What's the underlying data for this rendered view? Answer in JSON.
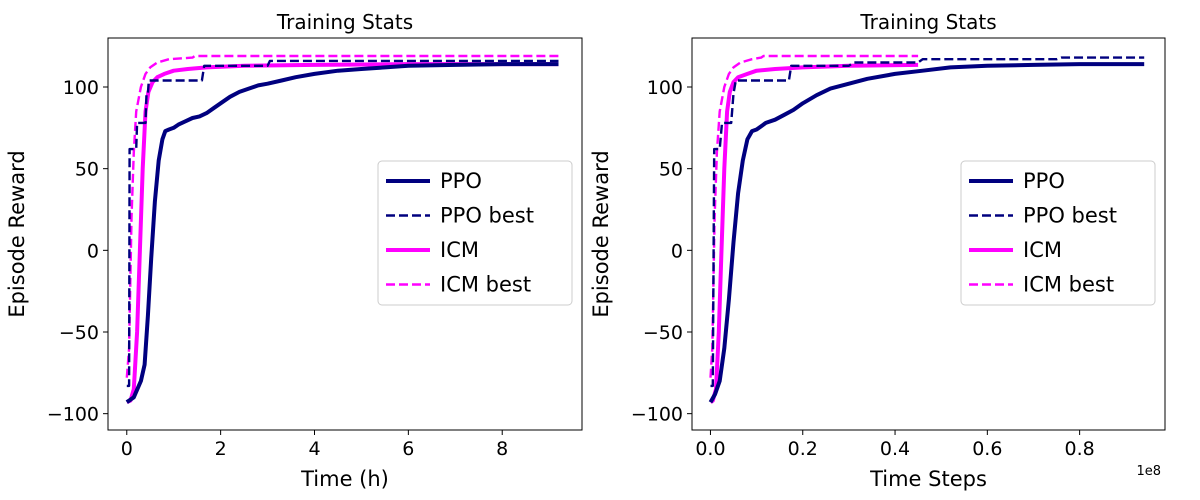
{
  "chart_data": [
    {
      "type": "line",
      "title": "Training Stats",
      "xlabel": "Time (h)",
      "ylabel": "Episode Reward",
      "xlim": [
        -0.4,
        9.7
      ],
      "ylim": [
        -110,
        130
      ],
      "xticks": [
        0,
        2,
        4,
        6,
        8
      ],
      "xtick_labels": [
        "0",
        "2",
        "4",
        "6",
        "8"
      ],
      "yticks": [
        -100,
        -50,
        0,
        50,
        100
      ],
      "ytick_labels": [
        "−100",
        "−50",
        "0",
        "50",
        "100"
      ],
      "x_offset_label": "",
      "grid": false,
      "legend_position": "center-right",
      "series": [
        {
          "name": "PPO",
          "color": "#00007f",
          "dash": "solid",
          "points": [
            [
              0,
              -93
            ],
            [
              0.15,
              -90
            ],
            [
              0.3,
              -80
            ],
            [
              0.38,
              -70
            ],
            [
              0.45,
              -40
            ],
            [
              0.52,
              -5
            ],
            [
              0.6,
              30
            ],
            [
              0.68,
              55
            ],
            [
              0.76,
              68
            ],
            [
              0.82,
              73
            ],
            [
              0.9,
              74
            ],
            [
              1.0,
              75
            ],
            [
              1.1,
              77
            ],
            [
              1.25,
              79
            ],
            [
              1.4,
              81
            ],
            [
              1.55,
              82
            ],
            [
              1.7,
              84
            ],
            [
              1.85,
              87
            ],
            [
              2.0,
              90
            ],
            [
              2.2,
              94
            ],
            [
              2.4,
              97
            ],
            [
              2.6,
              99
            ],
            [
              2.8,
              101
            ],
            [
              3.0,
              102
            ],
            [
              3.3,
              104
            ],
            [
              3.6,
              106
            ],
            [
              4.0,
              108
            ],
            [
              4.5,
              110
            ],
            [
              5.0,
              111
            ],
            [
              5.5,
              112
            ],
            [
              6.0,
              113
            ],
            [
              7.0,
              113.5
            ],
            [
              8.0,
              114
            ],
            [
              9.2,
              114
            ]
          ]
        },
        {
          "name": "PPO best",
          "color": "#00007f",
          "dash": "dashed",
          "points": [
            [
              0,
              -83
            ],
            [
              0.05,
              -83
            ],
            [
              0.06,
              62
            ],
            [
              0.2,
              62
            ],
            [
              0.22,
              78
            ],
            [
              0.4,
              78
            ],
            [
              0.42,
              96
            ],
            [
              0.45,
              96
            ],
            [
              0.47,
              104
            ],
            [
              1.6,
              104
            ],
            [
              1.65,
              113
            ],
            [
              3.0,
              113
            ],
            [
              3.05,
              116
            ],
            [
              9.2,
              116
            ]
          ]
        },
        {
          "name": "ICM",
          "color": "#ff00ff",
          "dash": "solid",
          "points": [
            [
              0,
              -93
            ],
            [
              0.08,
              -92
            ],
            [
              0.15,
              -85
            ],
            [
              0.22,
              -50
            ],
            [
              0.28,
              0
            ],
            [
              0.34,
              50
            ],
            [
              0.4,
              85
            ],
            [
              0.46,
              97
            ],
            [
              0.55,
              103
            ],
            [
              0.65,
              106
            ],
            [
              0.8,
              108
            ],
            [
              1.0,
              110
            ],
            [
              1.3,
              111
            ],
            [
              1.7,
              112
            ],
            [
              2.5,
              113
            ],
            [
              4.0,
              113.5
            ],
            [
              6.0,
              114
            ],
            [
              9.2,
              114
            ]
          ]
        },
        {
          "name": "ICM best",
          "color": "#ff00ff",
          "dash": "dashed",
          "points": [
            [
              0,
              -78
            ],
            [
              0.05,
              -60
            ],
            [
              0.1,
              20
            ],
            [
              0.15,
              60
            ],
            [
              0.2,
              85
            ],
            [
              0.3,
              100
            ],
            [
              0.4,
              108
            ],
            [
              0.5,
              112
            ],
            [
              0.65,
              115
            ],
            [
              0.9,
              117
            ],
            [
              1.4,
              118
            ],
            [
              1.45,
              119
            ],
            [
              9.2,
              119
            ]
          ]
        }
      ]
    },
    {
      "type": "line",
      "title": "Training Stats",
      "xlabel": "Time Steps",
      "ylabel": "Episode Reward",
      "xlim": [
        -0.004,
        0.0985
      ],
      "ylim": [
        -110,
        130
      ],
      "xticks": [
        0,
        0.02,
        0.04,
        0.06,
        0.08
      ],
      "xtick_labels": [
        "0.0",
        "0.2",
        "0.4",
        "0.6",
        "0.8"
      ],
      "yticks": [
        -100,
        -50,
        0,
        50,
        100
      ],
      "ytick_labels": [
        "−100",
        "−50",
        "0",
        "50",
        "100"
      ],
      "x_offset_label": "1e8",
      "grid": false,
      "legend_position": "center-right",
      "series": [
        {
          "name": "PPO",
          "color": "#00007f",
          "dash": "solid",
          "points": [
            [
              0,
              -93
            ],
            [
              0.001,
              -88
            ],
            [
              0.002,
              -80
            ],
            [
              0.003,
              -60
            ],
            [
              0.004,
              -30
            ],
            [
              0.005,
              5
            ],
            [
              0.006,
              35
            ],
            [
              0.007,
              55
            ],
            [
              0.008,
              68
            ],
            [
              0.009,
              73
            ],
            [
              0.01,
              74
            ],
            [
              0.011,
              76
            ],
            [
              0.012,
              78
            ],
            [
              0.014,
              80
            ],
            [
              0.016,
              83
            ],
            [
              0.018,
              86
            ],
            [
              0.02,
              90
            ],
            [
              0.023,
              95
            ],
            [
              0.026,
              99
            ],
            [
              0.03,
              102
            ],
            [
              0.034,
              105
            ],
            [
              0.04,
              108
            ],
            [
              0.046,
              110
            ],
            [
              0.052,
              112
            ],
            [
              0.06,
              113
            ],
            [
              0.07,
              113.5
            ],
            [
              0.08,
              114
            ],
            [
              0.094,
              114
            ]
          ]
        },
        {
          "name": "PPO best",
          "color": "#00007f",
          "dash": "dashed",
          "points": [
            [
              0,
              -83
            ],
            [
              0.0005,
              -83
            ],
            [
              0.0008,
              62
            ],
            [
              0.002,
              62
            ],
            [
              0.0025,
              78
            ],
            [
              0.0045,
              78
            ],
            [
              0.005,
              96
            ],
            [
              0.0055,
              104
            ],
            [
              0.017,
              104
            ],
            [
              0.0175,
              113
            ],
            [
              0.03,
              113
            ],
            [
              0.031,
              115
            ],
            [
              0.045,
              115
            ],
            [
              0.046,
              117
            ],
            [
              0.075,
              117
            ],
            [
              0.076,
              118
            ],
            [
              0.094,
              118
            ]
          ]
        },
        {
          "name": "ICM",
          "color": "#ff00ff",
          "dash": "solid",
          "points": [
            [
              0,
              -93
            ],
            [
              0.0005,
              -92
            ],
            [
              0.0012,
              -85
            ],
            [
              0.0018,
              -50
            ],
            [
              0.0024,
              0
            ],
            [
              0.003,
              50
            ],
            [
              0.0036,
              85
            ],
            [
              0.0042,
              97
            ],
            [
              0.005,
              103
            ],
            [
              0.006,
              106
            ],
            [
              0.008,
              108
            ],
            [
              0.01,
              110
            ],
            [
              0.014,
              111
            ],
            [
              0.02,
              112
            ],
            [
              0.03,
              113
            ],
            [
              0.045,
              113.5
            ]
          ]
        },
        {
          "name": "ICM best",
          "color": "#ff00ff",
          "dash": "dashed",
          "points": [
            [
              0,
              -78
            ],
            [
              0.0004,
              -60
            ],
            [
              0.0009,
              20
            ],
            [
              0.0014,
              60
            ],
            [
              0.002,
              85
            ],
            [
              0.003,
              100
            ],
            [
              0.004,
              108
            ],
            [
              0.005,
              112
            ],
            [
              0.0065,
              115
            ],
            [
              0.009,
              117
            ],
            [
              0.011,
              118
            ],
            [
              0.0115,
              119
            ],
            [
              0.045,
              119
            ]
          ]
        }
      ]
    }
  ]
}
